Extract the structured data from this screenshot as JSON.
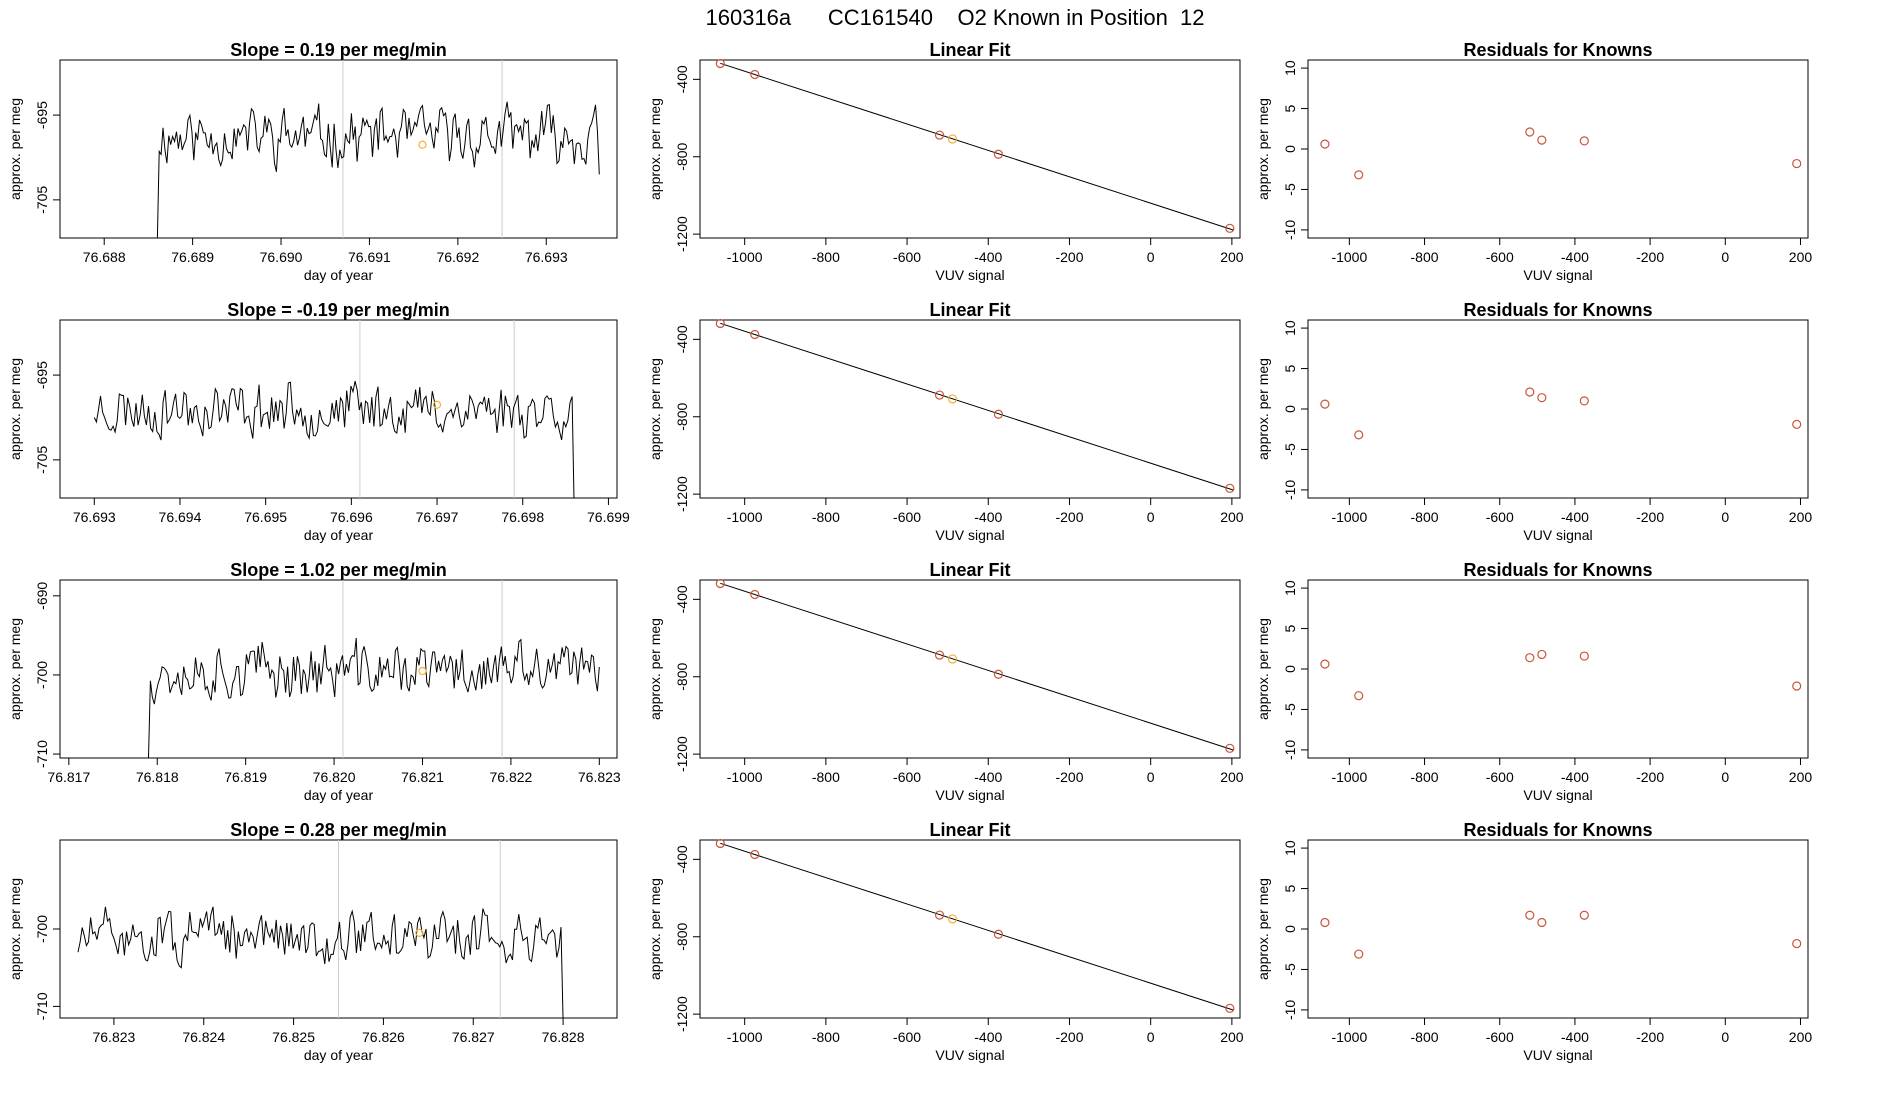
{
  "page": {
    "title": "160316a      CC161540    O2 Known in Position  12"
  },
  "colors": {
    "line": "#000000",
    "point": "#c9553a",
    "highlight": "#f2b233",
    "vline": "#cccccc",
    "fit": "#000000"
  },
  "chart_data": [
    {
      "type": "line",
      "row": 0,
      "col": 0,
      "title": "Slope =  0.19  per meg/min",
      "xlabel": "day of year",
      "ylabel": "approx. per meg",
      "xlim": [
        76.6875,
        76.6938
      ],
      "ylim": [
        -709.5,
        -688.5
      ],
      "xticks": [
        76.688,
        76.689,
        76.69,
        76.691,
        76.692,
        76.693
      ],
      "xtick_labels": [
        "76.688",
        "76.689",
        "76.690",
        "76.691",
        "76.692",
        "76.693"
      ],
      "yticks": [
        -695,
        -705
      ],
      "ytick_labels": [
        "-695",
        "-705"
      ],
      "start_x": 76.6886,
      "end_x": 76.6936,
      "drop_start": -710,
      "drop_end": -702,
      "mean": -697.5,
      "amp": 4.2,
      "seed": 11,
      "vlines": [
        76.6907,
        76.6925
      ],
      "highlight_point": {
        "x": 76.6916,
        "y": -698.5
      }
    },
    {
      "type": "scatter",
      "row": 0,
      "col": 1,
      "title": "Linear Fit",
      "xlabel": "VUV signal",
      "ylabel": "approx. per meg",
      "xlim": [
        -1110,
        220
      ],
      "ylim": [
        -1220,
        -300
      ],
      "xticks": [
        -1000,
        -800,
        -600,
        -400,
        -200,
        0,
        200
      ],
      "xtick_labels": [
        "-1000",
        "-800",
        "-600",
        "-400",
        "-200",
        "0",
        "200"
      ],
      "yticks": [
        -400,
        -800,
        -1200
      ],
      "ytick_labels": [
        "-400",
        "-800",
        "-1200"
      ],
      "fit_line": {
        "x": [
          -1060,
          205
        ],
        "y": [
          -317,
          -1180
        ]
      },
      "points": [
        {
          "x": -1060,
          "y": -318
        },
        {
          "x": -975,
          "y": -375
        },
        {
          "x": -520,
          "y": -688
        },
        {
          "x": -488,
          "y": -708,
          "highlight": true
        },
        {
          "x": -375,
          "y": -787
        },
        {
          "x": 195,
          "y": -1170
        }
      ]
    },
    {
      "type": "scatter",
      "row": 0,
      "col": 2,
      "title": "Residuals for Knowns",
      "xlabel": "VUV signal",
      "ylabel": "approx. per meg",
      "xlim": [
        -1110,
        220
      ],
      "ylim": [
        -11,
        11
      ],
      "xticks": [
        -1000,
        -800,
        -600,
        -400,
        -200,
        0,
        200
      ],
      "xtick_labels": [
        "-1000",
        "-800",
        "-600",
        "-400",
        "-200",
        "0",
        "200"
      ],
      "yticks": [
        10,
        5,
        0,
        -5,
        -10
      ],
      "ytick_labels": [
        "10",
        "5",
        "0",
        "-5",
        "-10"
      ],
      "points": [
        {
          "x": -1065,
          "y": 0.6
        },
        {
          "x": -975,
          "y": -3.2
        },
        {
          "x": -520,
          "y": 2.1
        },
        {
          "x": -488,
          "y": 1.1
        },
        {
          "x": -375,
          "y": 1.0
        },
        {
          "x": 190,
          "y": -1.8
        }
      ]
    },
    {
      "type": "line",
      "row": 1,
      "col": 0,
      "title": "Slope =  -0.19  per meg/min",
      "xlabel": "day of year",
      "ylabel": "approx. per meg",
      "xlim": [
        76.6926,
        76.6991
      ],
      "ylim": [
        -709.5,
        -688.5
      ],
      "xticks": [
        76.693,
        76.694,
        76.695,
        76.696,
        76.697,
        76.698,
        76.699
      ],
      "xtick_labels": [
        "76.693",
        "76.694",
        "76.695",
        "76.696",
        "76.697",
        "76.698",
        "76.699"
      ],
      "yticks": [
        -695,
        -705
      ],
      "ytick_labels": [
        "-695",
        "-705"
      ],
      "start_x": 76.693,
      "end_x": 76.6986,
      "drop_start": -700,
      "drop_end": -711,
      "mean": -699.0,
      "amp": 4.0,
      "seed": 23,
      "vlines": [
        76.6961,
        76.6979
      ],
      "highlight_point": {
        "x": 76.697,
        "y": -698.5
      }
    },
    {
      "type": "scatter",
      "row": 1,
      "col": 1,
      "title": "Linear Fit",
      "xlabel": "VUV signal",
      "ylabel": "approx. per meg",
      "xlim": [
        -1110,
        220
      ],
      "ylim": [
        -1220,
        -300
      ],
      "xticks": [
        -1000,
        -800,
        -600,
        -400,
        -200,
        0,
        200
      ],
      "xtick_labels": [
        "-1000",
        "-800",
        "-600",
        "-400",
        "-200",
        "0",
        "200"
      ],
      "yticks": [
        -400,
        -800,
        -1200
      ],
      "ytick_labels": [
        "-400",
        "-800",
        "-1200"
      ],
      "fit_line": {
        "x": [
          -1060,
          205
        ],
        "y": [
          -317,
          -1180
        ]
      },
      "points": [
        {
          "x": -1060,
          "y": -318
        },
        {
          "x": -975,
          "y": -375
        },
        {
          "x": -520,
          "y": -688
        },
        {
          "x": -488,
          "y": -708,
          "highlight": true
        },
        {
          "x": -375,
          "y": -787
        },
        {
          "x": 195,
          "y": -1170
        }
      ]
    },
    {
      "type": "scatter",
      "row": 1,
      "col": 2,
      "title": "Residuals for Knowns",
      "xlabel": "VUV signal",
      "ylabel": "approx. per meg",
      "xlim": [
        -1110,
        220
      ],
      "ylim": [
        -11,
        11
      ],
      "xticks": [
        -1000,
        -800,
        -600,
        -400,
        -200,
        0,
        200
      ],
      "xtick_labels": [
        "-1000",
        "-800",
        "-600",
        "-400",
        "-200",
        "0",
        "200"
      ],
      "yticks": [
        10,
        5,
        0,
        -5,
        -10
      ],
      "ytick_labels": [
        "10",
        "5",
        "0",
        "-5",
        "-10"
      ],
      "points": [
        {
          "x": -1065,
          "y": 0.6
        },
        {
          "x": -975,
          "y": -3.2
        },
        {
          "x": -520,
          "y": 2.1
        },
        {
          "x": -488,
          "y": 1.4
        },
        {
          "x": -375,
          "y": 1.0
        },
        {
          "x": 190,
          "y": -1.9
        }
      ]
    },
    {
      "type": "line",
      "row": 2,
      "col": 0,
      "title": "Slope =  1.02  per meg/min",
      "xlabel": "day of year",
      "ylabel": "approx. per meg",
      "xlim": [
        76.8169,
        76.8232
      ],
      "ylim": [
        -710.5,
        -688.0
      ],
      "xticks": [
        76.817,
        76.818,
        76.819,
        76.82,
        76.821,
        76.822,
        76.823
      ],
      "xtick_labels": [
        "76.817",
        "76.818",
        "76.819",
        "76.820",
        "76.821",
        "76.822",
        "76.823"
      ],
      "yticks": [
        -690,
        -700,
        -710
      ],
      "ytick_labels": [
        "-690",
        "-700",
        "-710"
      ],
      "start_x": 76.8179,
      "end_x": 76.823,
      "drop_start": -711,
      "drop_end": -699,
      "mean": -699.5,
      "amp": 4.5,
      "seed": 37,
      "vlines": [
        76.8201,
        76.8219
      ],
      "highlight_point": {
        "x": 76.821,
        "y": -699.5
      }
    },
    {
      "type": "scatter",
      "row": 2,
      "col": 1,
      "title": "Linear Fit",
      "xlabel": "VUV signal",
      "ylabel": "approx. per meg",
      "xlim": [
        -1110,
        220
      ],
      "ylim": [
        -1220,
        -300
      ],
      "xticks": [
        -1000,
        -800,
        -600,
        -400,
        -200,
        0,
        200
      ],
      "xtick_labels": [
        "-1000",
        "-800",
        "-600",
        "-400",
        "-200",
        "0",
        "200"
      ],
      "yticks": [
        -400,
        -800,
        -1200
      ],
      "ytick_labels": [
        "-400",
        "-800",
        "-1200"
      ],
      "fit_line": {
        "x": [
          -1060,
          205
        ],
        "y": [
          -317,
          -1180
        ]
      },
      "points": [
        {
          "x": -1060,
          "y": -318
        },
        {
          "x": -975,
          "y": -375
        },
        {
          "x": -520,
          "y": -688
        },
        {
          "x": -488,
          "y": -708,
          "highlight": true
        },
        {
          "x": -375,
          "y": -787
        },
        {
          "x": 195,
          "y": -1170
        }
      ]
    },
    {
      "type": "scatter",
      "row": 2,
      "col": 2,
      "title": "Residuals for Knowns",
      "xlabel": "VUV signal",
      "ylabel": "approx. per meg",
      "xlim": [
        -1110,
        220
      ],
      "ylim": [
        -11,
        11
      ],
      "xticks": [
        -1000,
        -800,
        -600,
        -400,
        -200,
        0,
        200
      ],
      "xtick_labels": [
        "-1000",
        "-800",
        "-600",
        "-400",
        "-200",
        "0",
        "200"
      ],
      "yticks": [
        10,
        5,
        0,
        -5,
        -10
      ],
      "ytick_labels": [
        "10",
        "5",
        "0",
        "-5",
        "-10"
      ],
      "points": [
        {
          "x": -1065,
          "y": 0.6
        },
        {
          "x": -975,
          "y": -3.3
        },
        {
          "x": -520,
          "y": 1.4
        },
        {
          "x": -488,
          "y": 1.8
        },
        {
          "x": -375,
          "y": 1.6
        },
        {
          "x": 190,
          "y": -2.1
        }
      ]
    },
    {
      "type": "line",
      "row": 3,
      "col": 0,
      "title": "Slope =  0.28  per meg/min",
      "xlabel": "day of year",
      "ylabel": "approx. per meg",
      "xlim": [
        76.8224,
        76.8286
      ],
      "ylim": [
        -711.5,
        -688.5
      ],
      "xticks": [
        76.823,
        76.824,
        76.825,
        76.826,
        76.827,
        76.828
      ],
      "xtick_labels": [
        "76.823",
        "76.824",
        "76.825",
        "76.826",
        "76.827",
        "76.828"
      ],
      "yticks": [
        -700,
        -710
      ],
      "ytick_labels": [
        "-700",
        "-710"
      ],
      "start_x": 76.8226,
      "end_x": 76.828,
      "drop_start": -703,
      "drop_end": -712,
      "mean": -701.0,
      "amp": 4.3,
      "seed": 51,
      "vlines": [
        76.8255,
        76.8273
      ],
      "highlight_point": {
        "x": 76.8264,
        "y": -700.5
      }
    },
    {
      "type": "scatter",
      "row": 3,
      "col": 1,
      "title": "Linear Fit",
      "xlabel": "VUV signal",
      "ylabel": "approx. per meg",
      "xlim": [
        -1110,
        220
      ],
      "ylim": [
        -1220,
        -300
      ],
      "xticks": [
        -1000,
        -800,
        -600,
        -400,
        -200,
        0,
        200
      ],
      "xtick_labels": [
        "-1000",
        "-800",
        "-600",
        "-400",
        "-200",
        "0",
        "200"
      ],
      "yticks": [
        -400,
        -800,
        -1200
      ],
      "ytick_labels": [
        "-400",
        "-800",
        "-1200"
      ],
      "fit_line": {
        "x": [
          -1060,
          205
        ],
        "y": [
          -317,
          -1180
        ]
      },
      "points": [
        {
          "x": -1060,
          "y": -318
        },
        {
          "x": -975,
          "y": -375
        },
        {
          "x": -520,
          "y": -688
        },
        {
          "x": -488,
          "y": -708,
          "highlight": true
        },
        {
          "x": -375,
          "y": -787
        },
        {
          "x": 195,
          "y": -1170
        }
      ]
    },
    {
      "type": "scatter",
      "row": 3,
      "col": 2,
      "title": "Residuals for Knowns",
      "xlabel": "VUV signal",
      "ylabel": "approx. per meg",
      "xlim": [
        -1110,
        220
      ],
      "ylim": [
        -11,
        11
      ],
      "xticks": [
        -1000,
        -800,
        -600,
        -400,
        -200,
        0,
        200
      ],
      "xtick_labels": [
        "-1000",
        "-800",
        "-600",
        "-400",
        "-200",
        "0",
        "200"
      ],
      "yticks": [
        10,
        5,
        0,
        -5,
        -10
      ],
      "ytick_labels": [
        "10",
        "5",
        "0",
        "-5",
        "-10"
      ],
      "points": [
        {
          "x": -1065,
          "y": 0.8
        },
        {
          "x": -975,
          "y": -3.1
        },
        {
          "x": -520,
          "y": 1.7
        },
        {
          "x": -488,
          "y": 0.8
        },
        {
          "x": -375,
          "y": 1.7
        },
        {
          "x": 190,
          "y": -1.8
        }
      ]
    }
  ]
}
